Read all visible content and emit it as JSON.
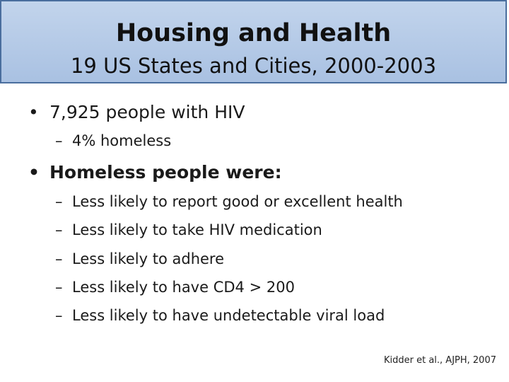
{
  "slide": {
    "title": "Housing and Health",
    "subtitle": "19 US States and Cities, 2000-2003",
    "bullet_marker": "•",
    "dash_marker": "–",
    "bullets": [
      {
        "text": "7,925 people with HIV",
        "subitems": [
          "4% homeless"
        ]
      },
      {
        "text": "Homeless people were:",
        "subitems": [
          "Less likely to report good or excellent health",
          "Less likely to take HIV medication",
          "Less likely to adhere",
          "Less likely to have CD4 > 200",
          "Less likely to have undetectable viral load"
        ]
      }
    ],
    "citation": "Kidder et al., AJPH, 2007"
  },
  "colors": {
    "title_bg_top": "#c2d4ec",
    "title_bg_bottom": "#a9c1e2",
    "title_border": "#4a6e9e",
    "text": "#1a1a1a"
  }
}
